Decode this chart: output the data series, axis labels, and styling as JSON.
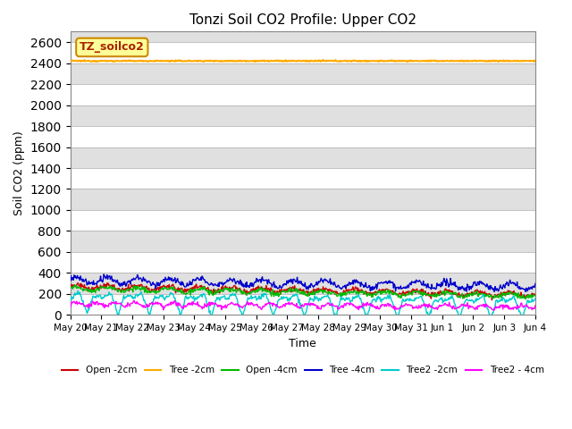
{
  "title": "Tonzi Soil CO2 Profile: Upper CO2",
  "xlabel": "Time",
  "ylabel": "Soil CO2 (ppm)",
  "ylim": [
    0,
    2700
  ],
  "yticks": [
    0,
    200,
    400,
    600,
    800,
    1000,
    1200,
    1400,
    1600,
    1800,
    2000,
    2200,
    2400,
    2600
  ],
  "x_labels": [
    "May 20",
    "May 21",
    "May 22",
    "May 23",
    "May 24",
    "May 25",
    "May 26",
    "May 27",
    "May 28",
    "May 29",
    "May 30",
    "May 31",
    "Jun 1",
    "Jun 2",
    "Jun 3",
    "Jun 4"
  ],
  "series": {
    "Open -2cm": {
      "color": "#cc0000",
      "lw": 1.0
    },
    "Tree -2cm": {
      "color": "#ffaa00",
      "lw": 1.5
    },
    "Open -4cm": {
      "color": "#00bb00",
      "lw": 1.0
    },
    "Tree -4cm": {
      "color": "#0000cc",
      "lw": 1.0
    },
    "Tree2 -2cm": {
      "color": "#00cccc",
      "lw": 1.0
    },
    "Tree2 - 4cm": {
      "color": "#ff00ff",
      "lw": 1.0
    }
  },
  "legend_label": "TZ_soilco2",
  "legend_bg": "#ffff99",
  "legend_border": "#cc8800",
  "bg_color": "#e0e0e0",
  "grid_color": "#ffffff",
  "band_color": "#ebebeb"
}
